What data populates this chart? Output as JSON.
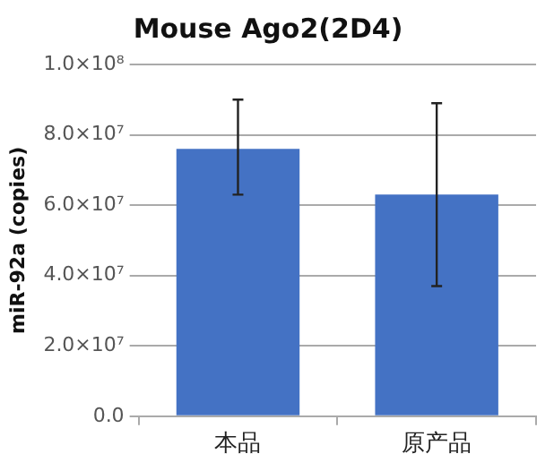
{
  "chart_data": {
    "type": "bar",
    "title": "Mouse Ago2(2D4)",
    "ylabel": "miR-92a (copies)",
    "categories": [
      "本品",
      "原产品"
    ],
    "values": [
      76000000,
      63000000
    ],
    "errors": [
      [
        63000000,
        90000000
      ],
      [
        37000000,
        89000000
      ]
    ],
    "color": "#4472c4",
    "ylim": [
      0,
      100000000
    ],
    "yticks": [
      {
        "value": 0,
        "label": "0.0"
      },
      {
        "value": 20000000,
        "label": "2.0×10⁷"
      },
      {
        "value": 40000000,
        "label": "4.0×10⁷"
      },
      {
        "value": 60000000,
        "label": "6.0×10⁷"
      },
      {
        "value": 80000000,
        "label": "8.0×10⁷"
      },
      {
        "value": 100000000,
        "label": "1.0×10⁸"
      }
    ],
    "grid": "y"
  }
}
